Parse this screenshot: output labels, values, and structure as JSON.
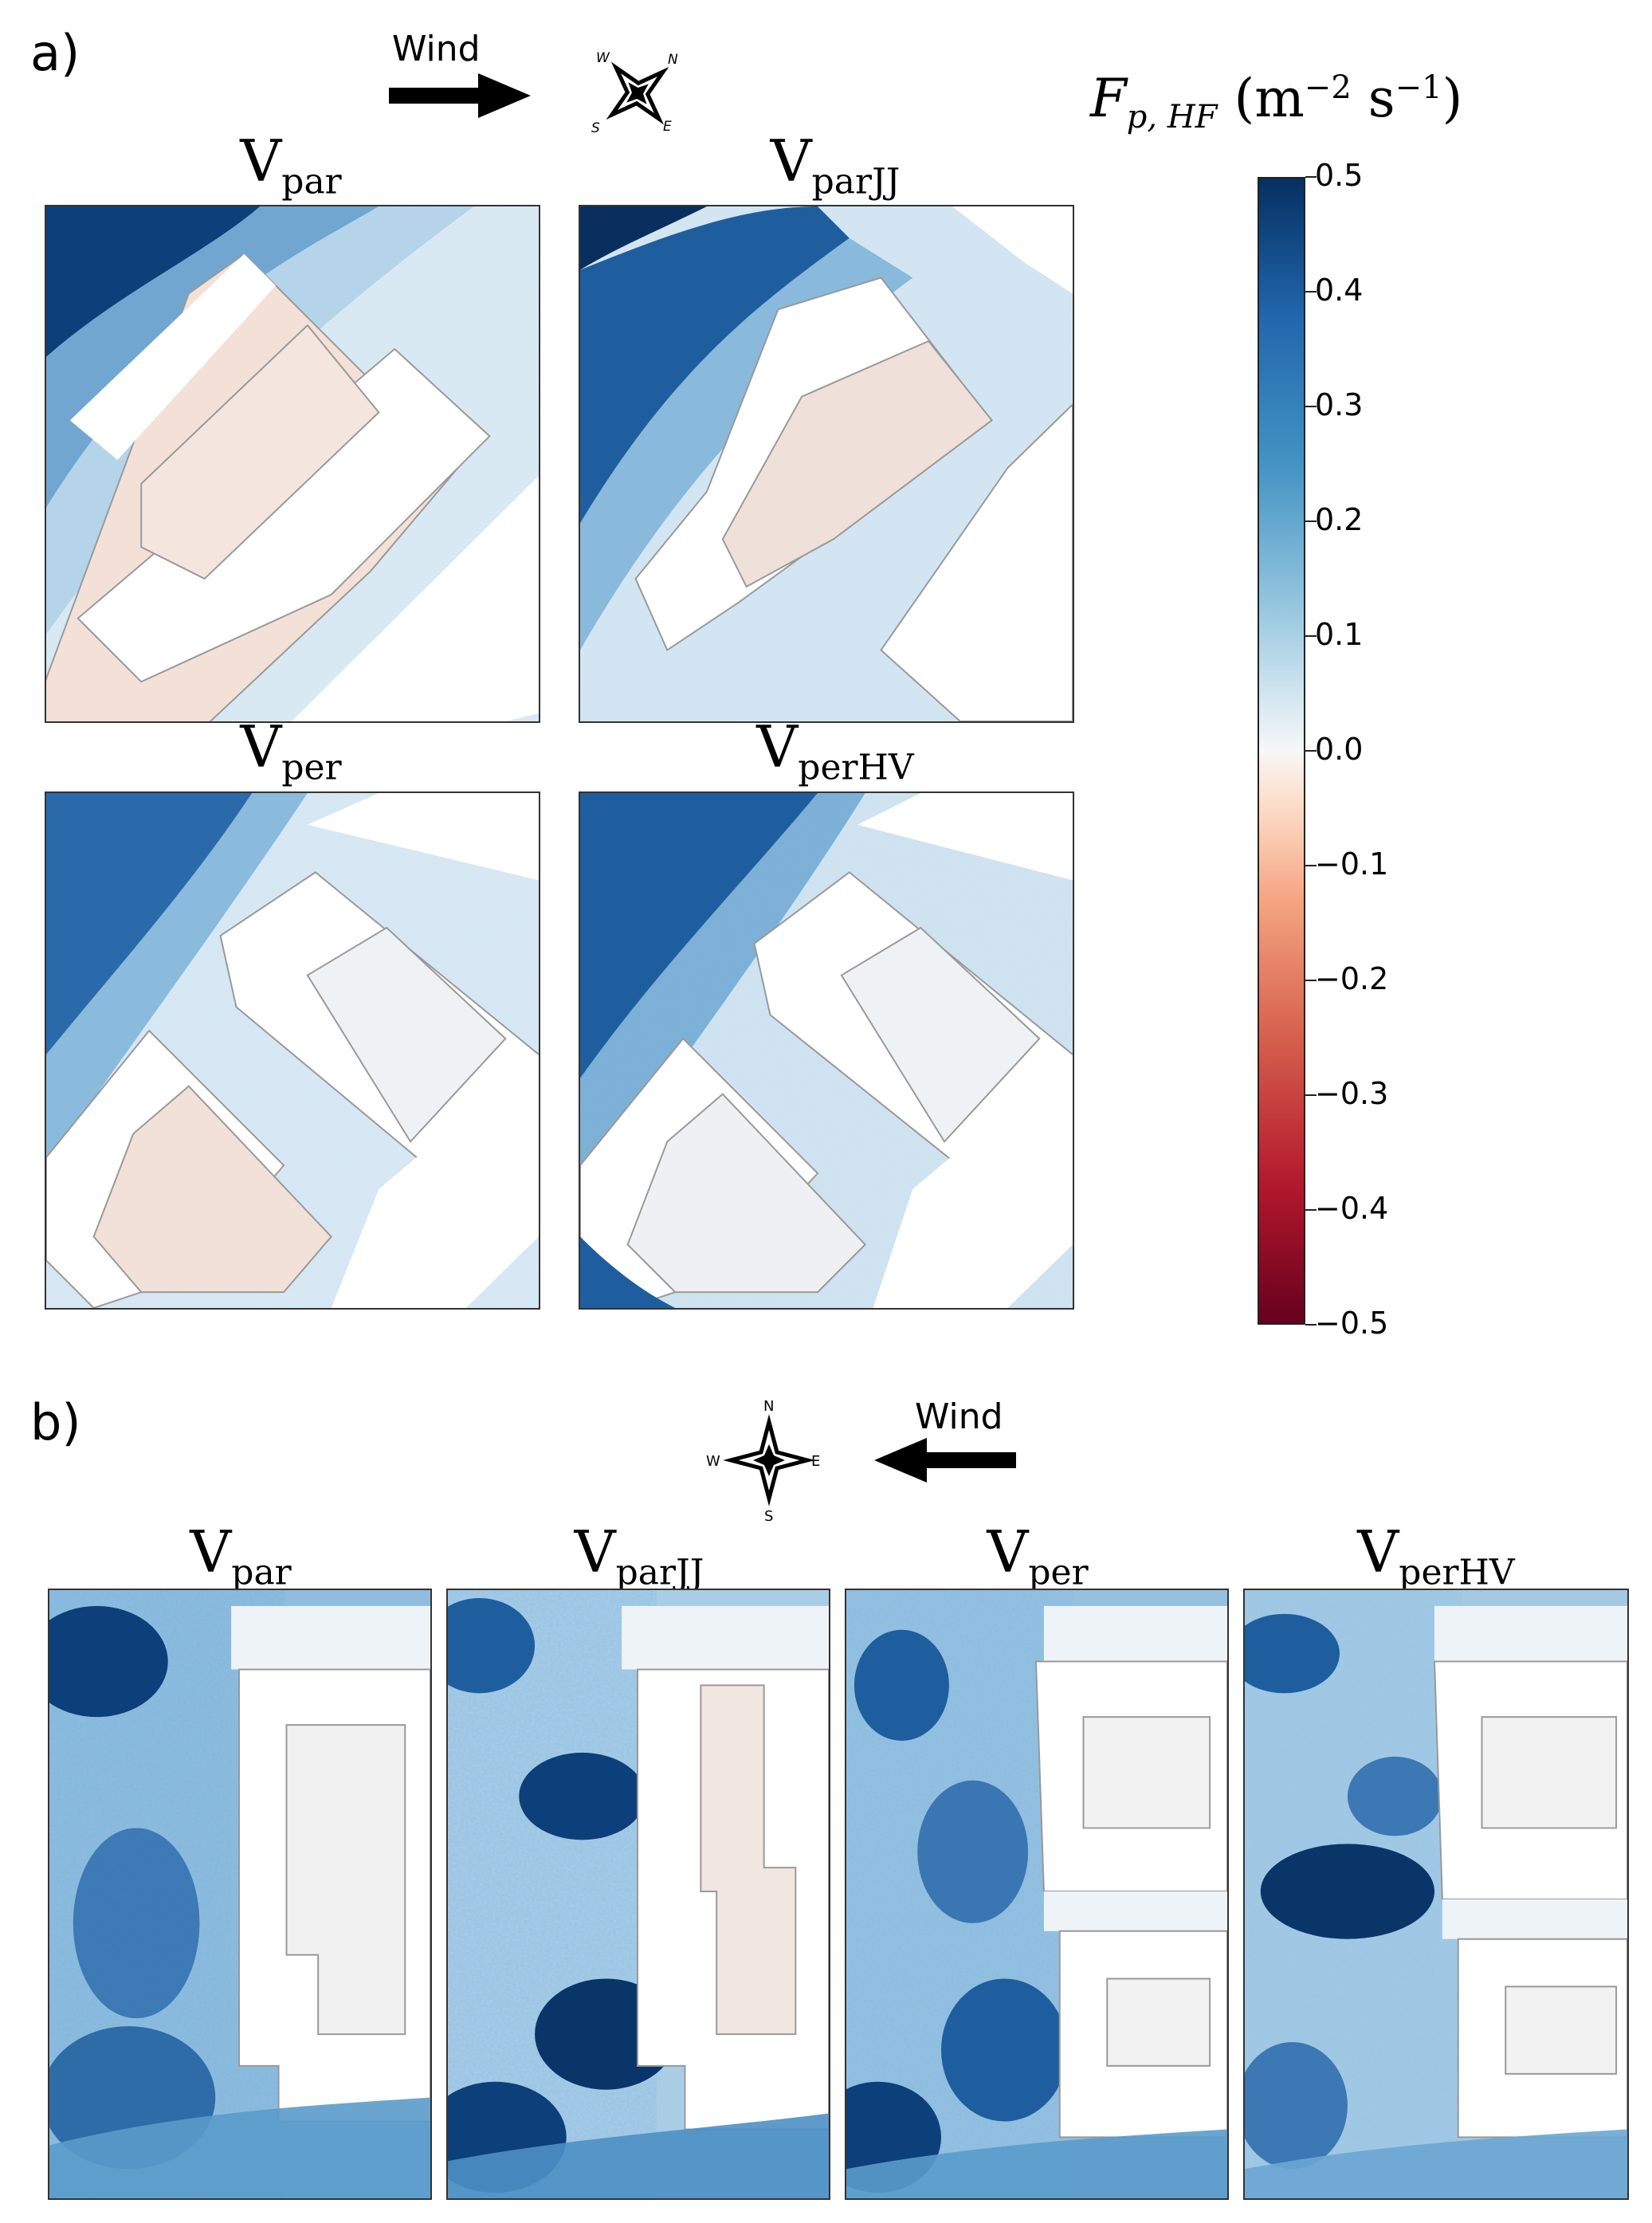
{
  "panels": {
    "a": {
      "label": "a)",
      "wind_label": "Wind",
      "compass": {
        "n": "N",
        "e": "E",
        "s": "S",
        "w": "W"
      },
      "titles": [
        {
          "main": "V",
          "sub": "par"
        },
        {
          "main": "V",
          "sub": "parJJ"
        },
        {
          "main": "V",
          "sub": "per"
        },
        {
          "main": "V",
          "sub": "perHV"
        }
      ]
    },
    "b": {
      "label": "b)",
      "wind_label": "Wind",
      "compass": {
        "n": "N",
        "e": "E",
        "s": "S",
        "w": "W"
      },
      "titles": [
        {
          "main": "V",
          "sub": "par"
        },
        {
          "main": "V",
          "sub": "parJJ"
        },
        {
          "main": "V",
          "sub": "per"
        },
        {
          "main": "V",
          "sub": "perHV"
        }
      ]
    }
  },
  "colorbar": {
    "symbol": "F",
    "sub": "p, HF",
    "unit_m": "m",
    "exp_m": "−2",
    "unit_s": "s",
    "exp_s": "−1",
    "ticks": [
      "0.5",
      "0.4",
      "0.3",
      "0.2",
      "0.1",
      "0.0",
      "−0.1",
      "−0.2",
      "−0.3",
      "−0.4",
      "−0.5"
    ],
    "colors": {
      "max": "#053061",
      "mid": "#f7f7f7",
      "min": "#67001f"
    }
  },
  "chart_data": {
    "type": "heatmap",
    "colormap": "RdBu",
    "vmin": -0.5,
    "vmax": 0.5,
    "colorbar_ticks": [
      0.5,
      0.4,
      0.3,
      0.2,
      0.1,
      0.0,
      -0.1,
      -0.2,
      -0.3,
      -0.4,
      -0.5
    ],
    "panels": [
      "a",
      "b"
    ],
    "subplots": [
      "Vpar",
      "VparJJ",
      "Vper",
      "VperHV"
    ]
  }
}
